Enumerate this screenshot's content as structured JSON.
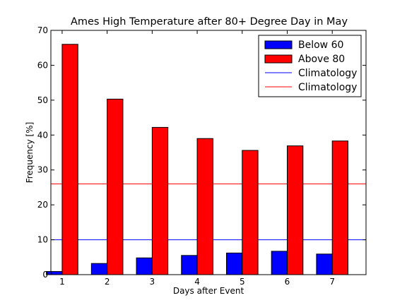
{
  "chart_data": {
    "type": "bar",
    "title": "Ames High Temperature after 80+ Degree Day in May",
    "xlabel": "Days after Event",
    "ylabel": "Frequency [%]",
    "ylim": [
      0,
      70
    ],
    "yticks": [
      0,
      10,
      20,
      30,
      40,
      50,
      60,
      70
    ],
    "categories": [
      "1",
      "2",
      "3",
      "4",
      "5",
      "6",
      "7"
    ],
    "series": [
      {
        "name": "Below 60",
        "color": "#0000ff",
        "values": [
          0.9,
          3.2,
          4.8,
          5.5,
          6.2,
          6.7,
          5.9
        ]
      },
      {
        "name": "Above 80",
        "color": "#ff0000",
        "values": [
          66.0,
          50.3,
          42.2,
          39.0,
          35.6,
          36.9,
          38.3
        ]
      }
    ],
    "reference_lines": [
      {
        "name": "Climatology",
        "color": "#0000ff",
        "value": 10.0
      },
      {
        "name": "Climatology",
        "color": "#ff0000",
        "value": 26.0
      }
    ],
    "legend_position": "top-right",
    "grid": false
  }
}
